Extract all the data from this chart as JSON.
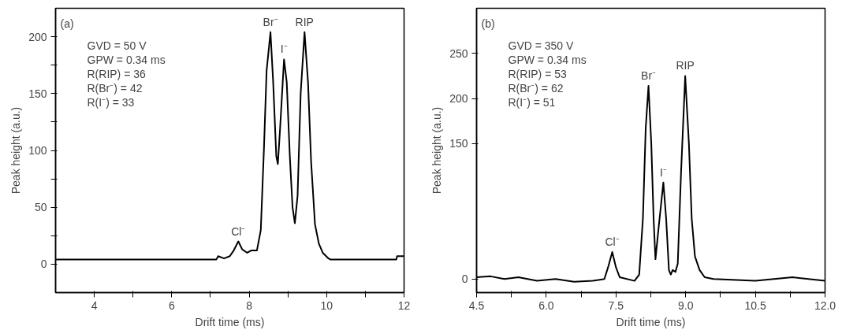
{
  "chart_data": [
    {
      "type": "line",
      "xlabel": "Drift time (ms)",
      "ylabel": "Peak height (a.u.)",
      "color": "#000000",
      "grid": false,
      "marker": "none",
      "line_style": "solid",
      "xlim": [
        3,
        12
      ],
      "ylim": [
        -25,
        225
      ],
      "xticks": [
        4,
        {
          "value": 5,
          "label": null
        },
        6,
        {
          "value": 7,
          "label": null
        },
        8,
        {
          "value": 9,
          "label": null
        },
        10,
        {
          "value": 11,
          "label": null
        },
        12
      ],
      "yticks": [
        0,
        {
          "value": 25,
          "label": null
        },
        50,
        {
          "value": 75,
          "label": null
        },
        100,
        {
          "value": 125,
          "label": null
        },
        150,
        {
          "value": 175,
          "label": null
        },
        200
      ],
      "x": [
        3,
        7.15,
        7.2,
        7.35,
        7.5,
        7.6,
        7.72,
        7.82,
        7.95,
        8.05,
        8.2,
        8.3,
        8.38,
        8.45,
        8.55,
        8.62,
        8.7,
        8.74,
        8.8,
        8.9,
        8.97,
        9.05,
        9.12,
        9.18,
        9.25,
        9.33,
        9.43,
        9.52,
        9.6,
        9.7,
        9.8,
        9.9,
        10.05,
        10.1,
        11.8,
        11.82,
        12
      ],
      "values": [
        4,
        4,
        7,
        5,
        7,
        12,
        20,
        13,
        10,
        12,
        12,
        30,
        100,
        170,
        204,
        160,
        95,
        88,
        120,
        180,
        160,
        95,
        50,
        36,
        60,
        150,
        204,
        160,
        90,
        35,
        18,
        10,
        5,
        4,
        4,
        7,
        7
      ],
      "annotations": [
        "(a)",
        "GVD = 50 V",
        "GPW = 0.34 ms",
        "R(RIP) = 36",
        "R(Br⁻) = 42",
        "R(I⁻) = 33",
        {
          "text": "Cl⁻",
          "x": 7.72,
          "y": 20
        },
        {
          "text": "Br⁻",
          "x": 8.55,
          "y": 204
        },
        {
          "text": "I⁻",
          "x": 8.9,
          "y": 180
        },
        {
          "text": "RIP",
          "x": 9.43,
          "y": 204
        }
      ]
    },
    {
      "type": "line",
      "xlabel": "Drift time (ms)",
      "ylabel": "Peak height (a.u.)",
      "color": "#000000",
      "grid": false,
      "marker": "none",
      "line_style": "solid",
      "xlim": [
        4.5,
        12
      ],
      "ylim": [
        -15,
        300
      ],
      "xticks": [
        {
          "value": 4.5,
          "label": "4.5"
        },
        {
          "value": 5.25,
          "label": null
        },
        {
          "value": 6,
          "label": "6.0"
        },
        {
          "value": 6.75,
          "label": null
        },
        {
          "value": 7.5,
          "label": "7.5"
        },
        {
          "value": 8.25,
          "label": null
        },
        {
          "value": 9,
          "label": "9.0"
        },
        {
          "value": 9.75,
          "label": null
        },
        {
          "value": 10.5,
          "label": "10.5"
        },
        {
          "value": 11.25,
          "label": null
        },
        {
          "value": 12,
          "label": "12.0"
        }
      ],
      "yticks": [
        0,
        150,
        200,
        250
      ],
      "x": [
        4.5,
        4.8,
        5.1,
        5.4,
        5.8,
        6.2,
        6.6,
        7.0,
        7.25,
        7.33,
        7.42,
        7.5,
        7.58,
        7.9,
        8.0,
        8.08,
        8.14,
        8.2,
        8.26,
        8.31,
        8.35,
        8.42,
        8.52,
        8.58,
        8.64,
        8.68,
        8.72,
        8.78,
        8.83,
        8.9,
        8.99,
        9.07,
        9.13,
        9.2,
        9.3,
        9.41,
        9.6,
        10.5,
        11.3,
        12
      ],
      "values": [
        2,
        3,
        0,
        2,
        -2,
        0,
        -3,
        -2,
        0,
        13,
        30,
        13,
        2,
        -2,
        5,
        67,
        167,
        214,
        150,
        67,
        22,
        58,
        107,
        67,
        10,
        5,
        10,
        8,
        17,
        117,
        225,
        150,
        67,
        25,
        10,
        2,
        0,
        -2,
        2,
        -2
      ],
      "annotations": [
        "(b)",
        "GVD = 350 V",
        "GPW = 0.34 ms",
        "R(RIP) = 53",
        "R(Br⁻) = 62",
        "R(I⁻) = 51",
        {
          "text": "Cl⁻",
          "x": 7.42,
          "y": 30
        },
        {
          "text": "Br⁻",
          "x": 8.2,
          "y": 214
        },
        {
          "text": "I⁻",
          "x": 8.52,
          "y": 107
        },
        {
          "text": "RIP",
          "x": 8.99,
          "y": 225
        }
      ]
    }
  ]
}
